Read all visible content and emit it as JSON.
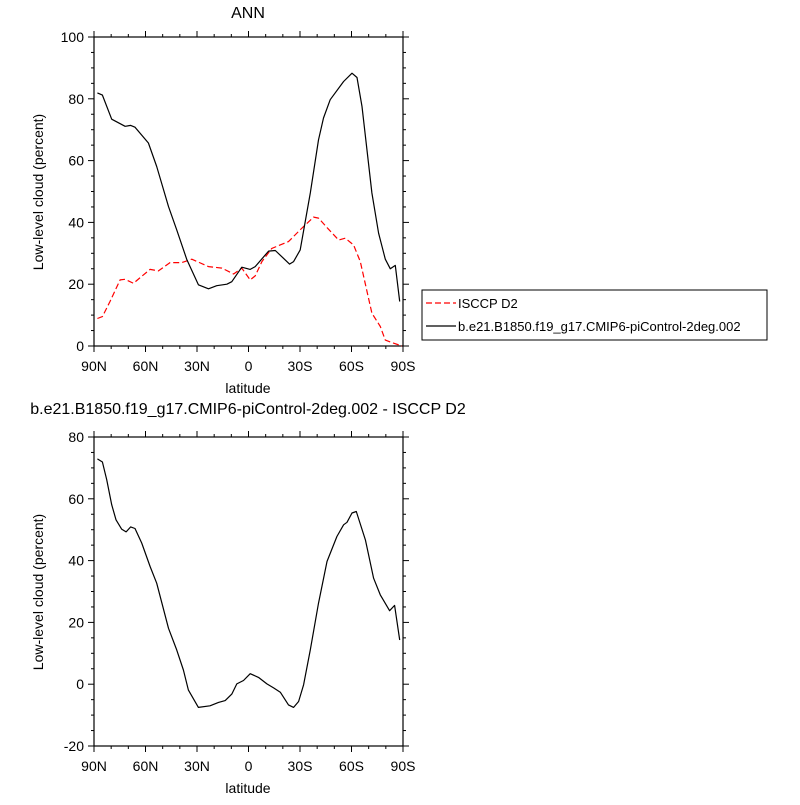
{
  "chart_data": [
    {
      "type": "line",
      "title": "ANN",
      "xlabel": "latitude",
      "ylabel": "Low-level cloud (percent)",
      "x_unit": "degrees latitude (N positive, S negative)",
      "xlim": [
        90,
        -90
      ],
      "ylim": [
        0,
        100
      ],
      "xticks": [
        90,
        60,
        30,
        0,
        -30,
        -60,
        -90
      ],
      "xtick_labels": [
        "90N",
        "60N",
        "30N",
        "0",
        "30S",
        "60S",
        "90S"
      ],
      "yticks": [
        0,
        20,
        40,
        60,
        80,
        100
      ],
      "ytick_labels": [
        "0",
        "20",
        "40",
        "60",
        "80",
        "100"
      ],
      "legend_placement": "right, outside",
      "series": [
        {
          "name": "ISCCP D2",
          "color": "#ff0000",
          "dash": "dashed",
          "x": [
            88,
            85.1,
            80.7,
            74.8,
            71.9,
            67,
            61.2,
            57.3,
            52.5,
            45.7,
            38.9,
            33,
            23.3,
            15.5,
            8.7,
            3.9,
            -1,
            -3.9,
            -7.8,
            -13.6,
            -23.3,
            -30.1,
            -37.9,
            -40.8,
            -46.6,
            -52.5,
            -56.4,
            -61.2,
            -65.1,
            -71.9,
            -76.8,
            -79.7,
            -84.6,
            -89.4
          ],
          "y": [
            8.9,
            9.5,
            14.4,
            21.4,
            21.6,
            20.3,
            23,
            24.8,
            24.3,
            27,
            27,
            28.1,
            25.7,
            25.2,
            23.3,
            25.2,
            21.4,
            22.7,
            27.3,
            31.6,
            33.8,
            37.6,
            41.7,
            41.4,
            37.8,
            34.3,
            34.9,
            32.7,
            27.3,
            10.6,
            6.3,
            1.9,
            0.9,
            0
          ]
        },
        {
          "name": "b.e21.B1850.f19_g17.CMIP6-piControl-2deg.002",
          "color": "#000000",
          "dash": "solid",
          "x": [
            88,
            85.1,
            79.7,
            71.9,
            68.6,
            66.1,
            58.3,
            53.5,
            46.6,
            41.8,
            35.9,
            29.2,
            23.3,
            18.5,
            12.6,
            9.7,
            3.9,
            -1,
            -3.9,
            -11.7,
            -15.6,
            -19.4,
            -23.9,
            -26.3,
            -30.1,
            -36,
            -40.8,
            -43.7,
            -47.6,
            -55.4,
            -60.3,
            -63.2,
            -66.1,
            -71.9,
            -75.8,
            -79.7,
            -82.6,
            -85.5,
            -88.1
          ],
          "y": [
            81.9,
            81.2,
            73.4,
            71.1,
            71.4,
            70.8,
            65.7,
            58.1,
            45.1,
            37.6,
            27.9,
            19.8,
            18.5,
            19.5,
            20,
            20.8,
            25.5,
            24.8,
            25.7,
            30.7,
            30.9,
            28.9,
            26.5,
            27.3,
            31.1,
            49.5,
            66.7,
            73.8,
            79.7,
            85.6,
            88.3,
            86.9,
            77.5,
            49.5,
            36.5,
            28.1,
            25,
            26.1,
            14.4
          ]
        }
      ]
    },
    {
      "type": "line",
      "title": "b.e21.B1850.f19_g17.CMIP6-piControl-2deg.002 - ISCCP D2",
      "xlabel": "latitude",
      "ylabel": "Low-level cloud (percent)",
      "x_unit": "degrees latitude (N positive, S negative)",
      "xlim": [
        90,
        -90
      ],
      "ylim": [
        -20,
        80
      ],
      "xticks": [
        90,
        60,
        30,
        0,
        -30,
        -60,
        -90
      ],
      "xtick_labels": [
        "90N",
        "60N",
        "30N",
        "0",
        "30S",
        "60S",
        "90S"
      ],
      "yticks": [
        -20,
        0,
        20,
        40,
        60,
        80
      ],
      "ytick_labels": [
        "-20",
        "0",
        "20",
        "40",
        "60",
        "80"
      ],
      "series": [
        {
          "color": "#000000",
          "dash": "solid",
          "x": [
            88,
            85.1,
            82.6,
            79.7,
            77.2,
            73.9,
            71.3,
            68.6,
            66.1,
            62.2,
            57.3,
            53.5,
            46.6,
            41.8,
            37.9,
            35,
            29.2,
            22.4,
            17.5,
            13.6,
            9.7,
            6.8,
            2.9,
            -1,
            -5.8,
            -10.7,
            -14.6,
            -18.5,
            -23.3,
            -26.3,
            -29.2,
            -32.1,
            -36,
            -40.8,
            -45.7,
            -51.5,
            -55.4,
            -57.4,
            -60.3,
            -62.8,
            -68.1,
            -72.9,
            -76.8,
            -82.2,
            -85.1,
            -88.1
          ],
          "y": [
            72.9,
            71.9,
            66.2,
            58.1,
            53.2,
            50.2,
            49.3,
            50.9,
            50.4,
            45.7,
            38.1,
            32.7,
            18.1,
            11.1,
            4.6,
            -1.9,
            -7.5,
            -7,
            -5.9,
            -5.3,
            -3.2,
            0.1,
            1.2,
            3.4,
            2.2,
            0.1,
            -1.2,
            -2.6,
            -6.7,
            -7.5,
            -5.6,
            -0.2,
            11.1,
            26.2,
            39.7,
            47.8,
            51.6,
            52.4,
            55.4,
            55.9,
            46.7,
            34.3,
            28.9,
            23.8,
            25.5,
            14.3
          ]
        }
      ]
    }
  ]
}
